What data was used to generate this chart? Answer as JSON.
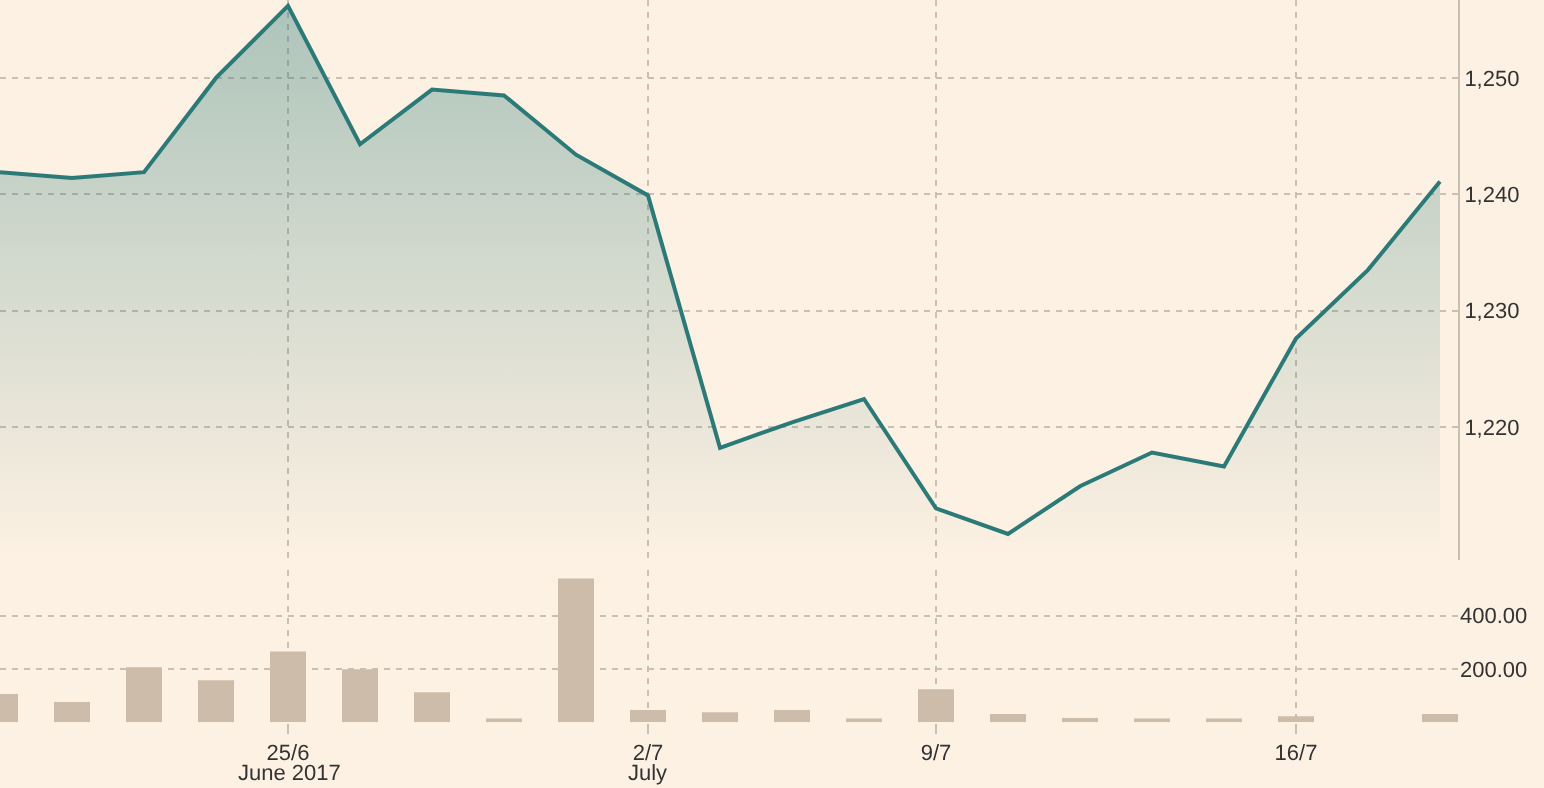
{
  "chart_data": [
    {
      "type": "area",
      "tick_labels": "y",
      "categories": [
        null,
        null,
        null,
        null,
        null,
        null,
        null,
        null,
        null,
        null,
        null,
        null,
        null,
        null,
        null,
        null,
        null,
        null,
        null,
        null,
        null
      ],
      "series": [
        {
          "type": "area",
          "color": "#2b7a78",
          "values": [
            1241.9,
            1241.4,
            1241.9,
            1250.0,
            1256.2,
            1244.3,
            1249.0,
            1248.5,
            1243.4,
            1239.9,
            1218.2,
            1220.4,
            1222.4,
            1213.0,
            1210.8,
            1214.9,
            1217.8,
            1216.6,
            1227.6,
            1233.5,
            1241.1
          ]
        }
      ],
      "ylim": [
        1208.6,
        1256.7
      ],
      "yticks": [
        {
          "value": 1220,
          "label": "1,220"
        },
        {
          "value": 1230,
          "label": "1,230"
        },
        {
          "value": 1240,
          "label": "1,240"
        },
        {
          "value": 1250,
          "label": "1,250"
        }
      ],
      "grid": true,
      "marker": "none",
      "line_style": "solid"
    },
    {
      "type": "bar",
      "categories": [
        null,
        null,
        null,
        null,
        "25/6",
        null,
        null,
        null,
        null,
        "2/7",
        null,
        null,
        null,
        "9/7",
        null,
        null,
        null,
        null,
        "16/7",
        null,
        null
      ],
      "series": [
        {
          "color": "#cdbcaa",
          "values": [
            105,
            75,
            206,
            157,
            265,
            198,
            112,
            8,
            539,
            45,
            37,
            45,
            8,
            123,
            30,
            15,
            8,
            8,
            22,
            null,
            30
          ]
        }
      ],
      "ylim": [
        0,
        570
      ],
      "yticks": [
        {
          "value": 200,
          "label": "200.00"
        },
        {
          "value": 400,
          "label": "400.00"
        }
      ],
      "annotations": [
        "June 2017",
        "July"
      ],
      "grid": true
    }
  ]
}
